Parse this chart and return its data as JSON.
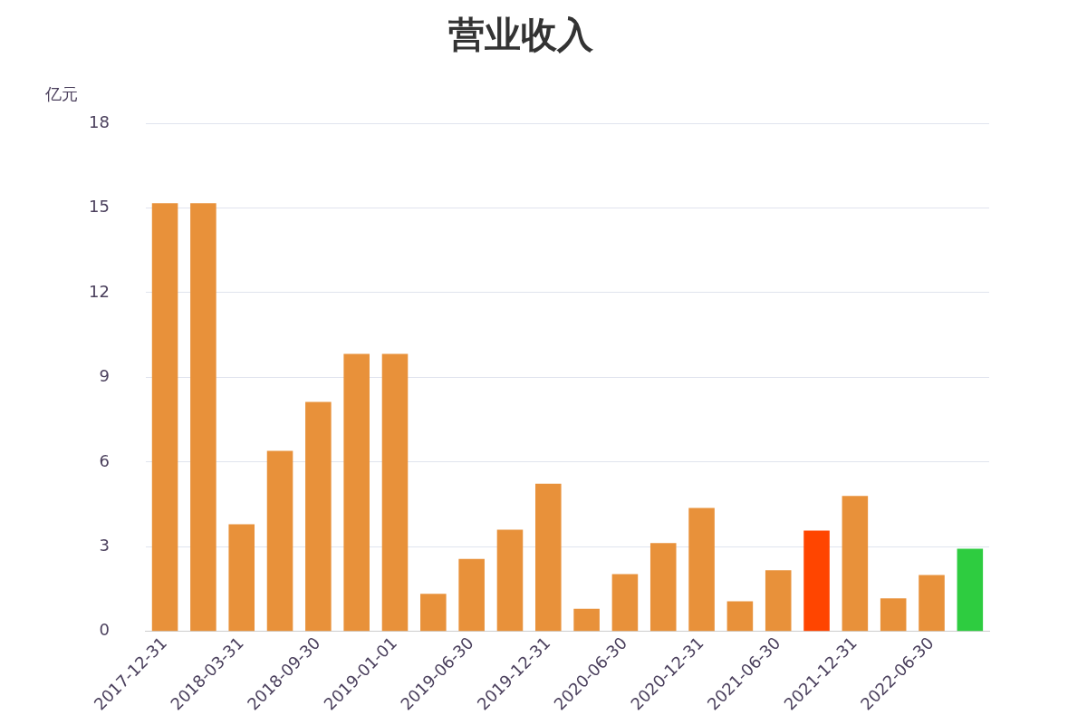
{
  "chart_data": {
    "type": "bar",
    "title": "营业收入",
    "ylabel": "亿元",
    "categories": [
      "2017-12-31",
      null,
      "2018-03-31",
      null,
      "2018-09-30",
      null,
      "2019-01-01",
      null,
      "2019-06-30",
      null,
      "2019-12-31",
      null,
      "2020-06-30",
      null,
      "2020-12-31",
      null,
      "2021-06-30",
      null,
      "2021-12-31",
      null,
      "2022-06-30",
      null
    ],
    "values": [
      15.17,
      15.17,
      3.8,
      6.4,
      8.13,
      9.83,
      9.83,
      1.33,
      2.57,
      3.6,
      5.23,
      0.8,
      2.03,
      3.13,
      4.37,
      1.07,
      2.17,
      3.57,
      4.8,
      1.17,
      2.0,
      2.93
    ],
    "colors": [
      "#e8913a",
      "#e8913a",
      "#e8913a",
      "#e8913a",
      "#e8913a",
      "#e8913a",
      "#e8913a",
      "#e8913a",
      "#e8913a",
      "#e8913a",
      "#e8913a",
      "#e8913a",
      "#e8913a",
      "#e8913a",
      "#e8913a",
      "#e8913a",
      "#e8913a",
      "#ff4500",
      "#e8913a",
      "#e8913a",
      "#e8913a",
      "#2ecc40"
    ],
    "ylim": [
      0,
      18
    ],
    "yticks": [
      0,
      3,
      6,
      9,
      12,
      15,
      18
    ],
    "grid": "y",
    "legend": false
  }
}
